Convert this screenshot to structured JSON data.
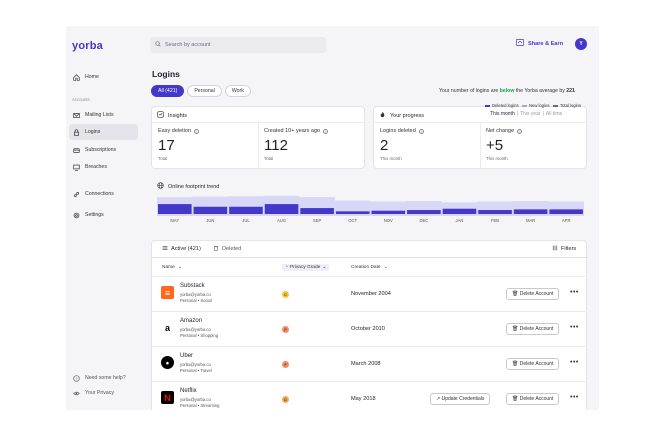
{
  "app": {
    "logo": "yorba"
  },
  "sidebar": {
    "items": [
      {
        "label": "Home",
        "icon": "home-icon"
      },
      {
        "label": "Mailing Lists",
        "icon": "mail-icon"
      },
      {
        "label": "Logins",
        "icon": "lock-icon"
      },
      {
        "label": "Subscriptions",
        "icon": "card-icon"
      },
      {
        "label": "Breaches",
        "icon": "monitor-icon"
      },
      {
        "label": "Connections",
        "icon": "link-icon"
      },
      {
        "label": "Settings",
        "icon": "gear-icon"
      }
    ],
    "section_label": "Accounts",
    "footer": [
      {
        "label": "Need some help?",
        "icon": "help-icon"
      },
      {
        "label": "Your Privacy",
        "icon": "eye-icon"
      }
    ]
  },
  "header": {
    "search_placeholder": "Search by account",
    "share_label": "Share & Earn",
    "avatar_initial": "Y"
  },
  "page": {
    "title": "Logins",
    "tabs": [
      "All (421)",
      "Personal",
      "Work"
    ],
    "below_text_prefix": "Your number of logins are ",
    "below_text_green": "below",
    "below_text_mid": " the Yorba average by ",
    "below_text_count": "221"
  },
  "insights": {
    "title": "Insights",
    "easy_deletion_label": "Easy deletion",
    "easy_deletion_value": "17",
    "easy_deletion_sub": "Total",
    "created_label": "Created 10+ years ago",
    "created_value": "112",
    "created_sub": "Total"
  },
  "progress": {
    "title": "Your progress",
    "periods": [
      "This month",
      "This year",
      "All time"
    ],
    "deleted_label": "Logins deleted",
    "deleted_value": "2",
    "deleted_sub": "This month",
    "net_label": "Net change",
    "net_value": "+5",
    "net_sub": "This month"
  },
  "trend": {
    "title": "Online footprint trend",
    "legend": [
      {
        "label": "Deleted logins",
        "color": "#4338ca"
      },
      {
        "label": "New logins",
        "color": "#a5a0f0"
      },
      {
        "label": "Total logins",
        "color": "#6b6b78"
      }
    ],
    "months": [
      "MAY",
      "JUN",
      "JUL",
      "AUG",
      "SEP",
      "OCT",
      "NOV",
      "DEC",
      "JAN",
      "FEB",
      "MAR",
      "APR"
    ],
    "total_logins": [
      0.85,
      0.88,
      0.9,
      0.92,
      0.86,
      0.7,
      0.66,
      0.68,
      0.62,
      0.66,
      0.68,
      0.66
    ],
    "deleted_logins": [
      0.75,
      0.55,
      0.55,
      0.75,
      0.45,
      0.2,
      0.25,
      0.3,
      0.4,
      0.3,
      0.35,
      0.35
    ]
  },
  "table": {
    "tabs": [
      "Active (421)",
      "Deleted"
    ],
    "filters_label": "Filters",
    "columns": [
      "Name",
      "Privacy Grade",
      "Creation Date"
    ],
    "rows": [
      {
        "name": "Substack",
        "email": "yorba@yorba.co",
        "tags": "Personal  •  Social",
        "grade": "C",
        "grade_color": "#f5c542",
        "date": "November 2004",
        "logo_color": "#ff6719",
        "logo_text": "≡",
        "actions": [
          "Delete Account"
        ]
      },
      {
        "name": "Amazon",
        "email": "yorba@yorba.co",
        "tags": "Personal  •  Shopping",
        "grade": "F",
        "grade_color": "#f28b6b",
        "date": "October 2010",
        "logo_color": "#ffffff",
        "logo_text": "a",
        "actions": [
          "Delete Account"
        ]
      },
      {
        "name": "Uber",
        "email": "yorba@yorba.co",
        "tags": "Personal  •  Travel",
        "grade": "F",
        "grade_color": "#f28b6b",
        "date": "March 2008",
        "logo_color": "#000000",
        "logo_text": "•",
        "actions": [
          "Delete Account"
        ]
      },
      {
        "name": "Netflix",
        "email": "yorba@yorba.co",
        "tags": "Personal  •  Streaming",
        "grade": "D",
        "grade_color": "#f5a65b",
        "date": "May 2018",
        "logo_color": "#000000",
        "logo_text": "N",
        "actions": [
          "Update Credentials",
          "Delete Account"
        ]
      }
    ]
  }
}
